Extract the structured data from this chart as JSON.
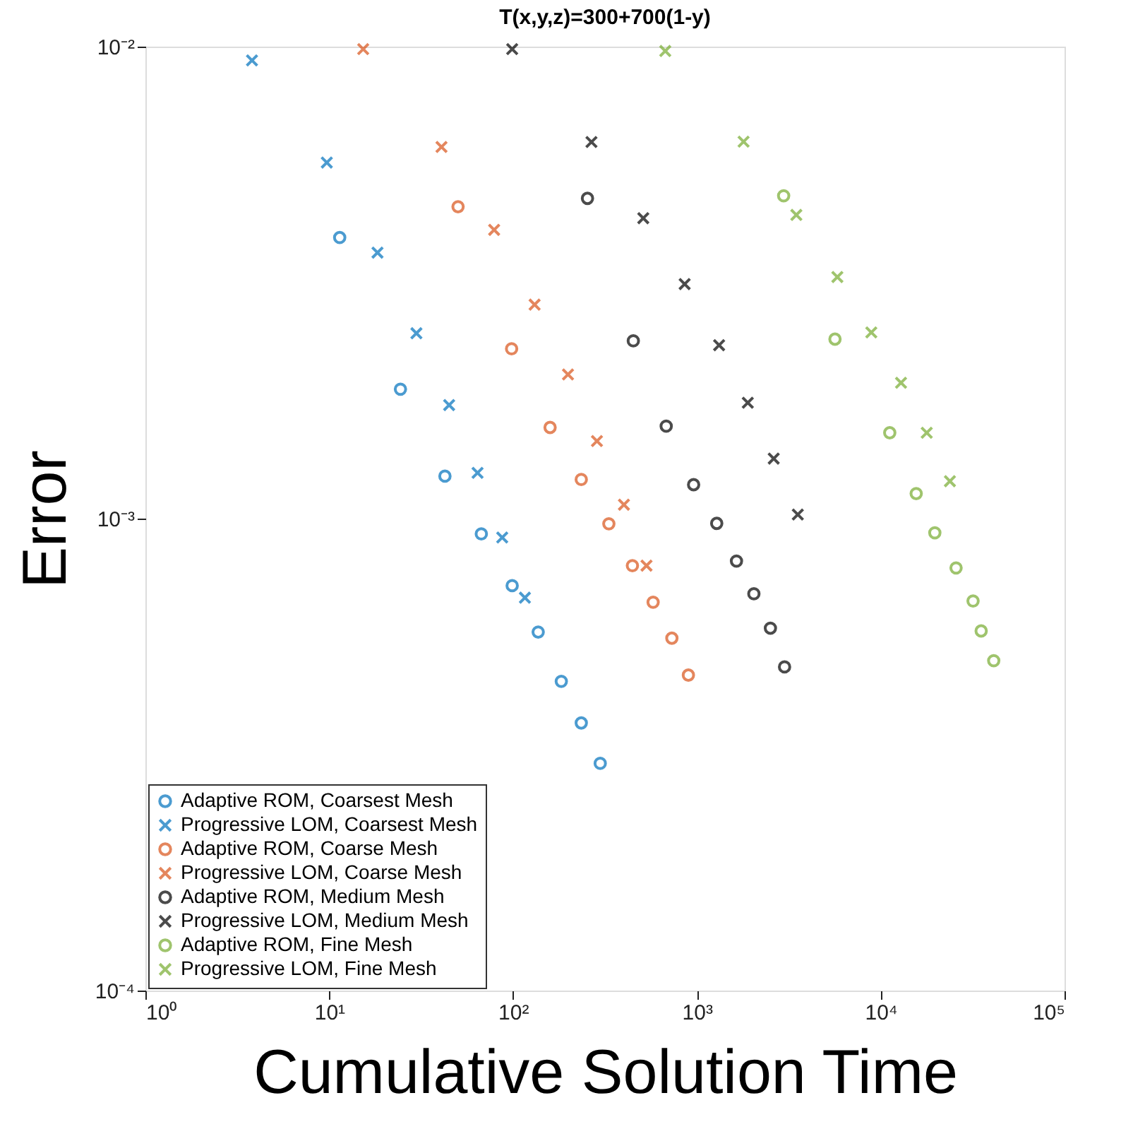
{
  "chart_data": {
    "type": "scatter",
    "title": "T(x,y,z)=300+700(1-y)",
    "xlabel": "Cumulative Solution Time",
    "ylabel": "Error",
    "log": "xy",
    "grid": false,
    "legend": "bottom left",
    "xlim": [
      1,
      100000
    ],
    "ylim": [
      0.0001,
      0.01
    ],
    "xticks": [
      {
        "value": 1,
        "label": "10⁰"
      },
      {
        "value": 10,
        "label": "10¹"
      },
      {
        "value": 100,
        "label": "10²"
      },
      {
        "value": 1000,
        "label": "10³"
      },
      {
        "value": 10000,
        "label": "10⁴"
      },
      {
        "value": 100000,
        "label": "10⁵"
      }
    ],
    "yticks": [
      {
        "value": 0.0001,
        "label": "10⁻⁴"
      },
      {
        "value": 0.001,
        "label": "10⁻³"
      },
      {
        "value": 0.01,
        "label": "10⁻²"
      }
    ],
    "series": [
      {
        "name": "Adaptive ROM, Coarsest Mesh",
        "color": "#0072bd",
        "marker": "circle",
        "x": [
          11.4,
          24.4,
          42.6,
          67.2,
          98.9,
          137,
          183,
          235,
          298
        ],
        "values": [
          0.00394,
          0.00188,
          0.00123,
          0.000928,
          0.000721,
          0.000575,
          0.000452,
          0.000369,
          0.000303
        ]
      },
      {
        "name": "Progressive LOM, Coarsest Mesh",
        "color": "#0072bd",
        "marker": "cross",
        "x": [
          3.8,
          9.7,
          18.3,
          29.8,
          44.9,
          64.1,
          87.3,
          116
        ],
        "values": [
          0.00935,
          0.00568,
          0.00366,
          0.00247,
          0.00174,
          0.00125,
          0.000912,
          0.00068
        ]
      },
      {
        "name": "Adaptive ROM, Coarse Mesh",
        "color": "#d95319",
        "marker": "circle",
        "x": [
          50.2,
          98.2,
          159,
          235,
          332,
          446,
          578,
          731,
          899
        ],
        "values": [
          0.00458,
          0.00229,
          0.00156,
          0.00121,
          0.000975,
          0.000795,
          0.000665,
          0.000558,
          0.000466
        ]
      },
      {
        "name": "Progressive LOM, Coarse Mesh",
        "color": "#d95319",
        "marker": "cross",
        "x": [
          15.3,
          40.8,
          78.9,
          131,
          199,
          286,
          401,
          532
        ],
        "values": [
          0.00988,
          0.00613,
          0.00409,
          0.00284,
          0.00202,
          0.00146,
          0.00107,
          0.000795
        ]
      },
      {
        "name": "Adaptive ROM, Medium Mesh",
        "color": "#000000",
        "marker": "circle",
        "x": [
          254,
          451,
          681,
          960,
          1282,
          1642,
          2042,
          2512,
          2999
        ],
        "values": [
          0.00477,
          0.00238,
          0.00157,
          0.00118,
          0.000977,
          0.000813,
          0.000693,
          0.000586,
          0.000485
        ]
      },
      {
        "name": "Progressive LOM, Medium Mesh",
        "color": "#000000",
        "marker": "cross",
        "x": [
          98.9,
          267,
          511,
          858,
          1321,
          1892,
          2618,
          3540
        ],
        "values": [
          0.00988,
          0.00628,
          0.00433,
          0.00314,
          0.00233,
          0.00176,
          0.00134,
          0.00102
        ]
      },
      {
        "name": "Adaptive ROM, Fine Mesh",
        "color": "#77ac30",
        "marker": "circle",
        "x": [
          2965,
          5640,
          11200,
          15600,
          19700,
          25700,
          31800,
          35200,
          41200
        ],
        "values": [
          0.00483,
          0.0024,
          0.00152,
          0.00113,
          0.000933,
          0.000786,
          0.000669,
          0.000578,
          0.0005
        ]
      },
      {
        "name": "Progressive LOM, Fine Mesh",
        "color": "#77ac30",
        "marker": "cross",
        "x": [
          673,
          1795,
          3476,
          5810,
          8890,
          12900,
          17800,
          23800
        ],
        "values": [
          0.00979,
          0.00629,
          0.0044,
          0.00325,
          0.00248,
          0.00194,
          0.00152,
          0.0012
        ]
      }
    ]
  }
}
